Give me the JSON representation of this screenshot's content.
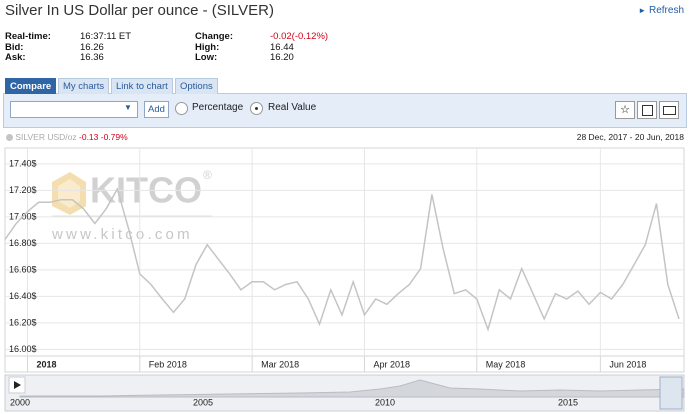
{
  "header": {
    "title": "Silver In US Dollar per ounce - (SILVER)",
    "refresh": "Refresh"
  },
  "quote": {
    "rows": [
      [
        "Real-time:",
        "16:37:11 ET",
        "Change:",
        "-0.02(-0.12%)"
      ],
      [
        "Bid:",
        "16.26",
        "High:",
        "16.44"
      ],
      [
        "Ask:",
        "16.36",
        "Low:",
        "16.20"
      ]
    ]
  },
  "tabs": [
    "Compare",
    "My charts",
    "Link to chart",
    "Options"
  ],
  "toolbar": {
    "add": "Add",
    "percentage": "Percentage",
    "real_value": "Real Value"
  },
  "legend": {
    "change": "-0.13",
    "change_pct": "-0.79%"
  },
  "watermark": {
    "brand": "KITCO",
    "mark": "®",
    "url": "www.kitco.com"
  },
  "chart_data": {
    "type": "line",
    "date_range": "28 Dec, 2017 - 20 Jun, 2018",
    "categories": [
      null,
      null,
      "2018",
      null,
      null,
      null,
      null,
      null,
      null,
      null,
      null,
      null,
      "Feb 2018",
      null,
      null,
      null,
      null,
      null,
      null,
      null,
      null,
      null,
      "Mar 2018",
      null,
      null,
      null,
      null,
      null,
      null,
      null,
      null,
      null,
      "Apr 2018",
      null,
      null,
      null,
      null,
      null,
      null,
      null,
      null,
      null,
      "May 2018",
      null,
      null,
      null,
      null,
      null,
      null,
      null,
      null,
      null,
      null,
      "Jun 2018",
      null,
      null,
      null,
      null,
      null,
      null,
      null
    ],
    "series": [
      {
        "name": "SILVER USD/oz",
        "color": "#c4c4c4",
        "values": [
          16.83,
          16.95,
          17.04,
          17.11,
          17.11,
          17.13,
          17.13,
          17.06,
          16.95,
          17.06,
          17.21,
          16.91,
          16.57,
          16.49,
          16.38,
          16.28,
          16.38,
          16.64,
          16.79,
          16.68,
          16.57,
          16.45,
          16.51,
          16.51,
          16.45,
          16.49,
          16.51,
          16.38,
          16.19,
          16.45,
          16.26,
          16.51,
          16.26,
          16.38,
          16.34,
          16.42,
          16.49,
          16.61,
          17.17,
          16.76,
          16.42,
          16.45,
          16.38,
          16.15,
          16.45,
          16.38,
          16.61,
          16.42,
          16.23,
          16.42,
          16.38,
          16.44,
          16.34,
          16.43,
          16.38,
          16.49,
          16.64,
          16.79,
          17.1,
          16.49,
          16.23
        ]
      }
    ],
    "ylim": [
      15.95,
      17.52
    ],
    "yticks": [
      {
        "value": 16.0,
        "label": "16.00$"
      },
      {
        "value": 16.2,
        "label": "16.20$"
      },
      {
        "value": 16.4,
        "label": "16.40$"
      },
      {
        "value": 16.6,
        "label": "16.60$"
      },
      {
        "value": 16.8,
        "label": "16.80$"
      },
      {
        "value": 17.0,
        "label": "17.00$"
      },
      {
        "value": 17.2,
        "label": "17.20$"
      },
      {
        "value": 17.4,
        "label": "17.40$"
      }
    ],
    "grid": true,
    "navigator": {
      "labels": [
        "2000",
        "2005",
        "2010",
        "2015"
      ]
    }
  }
}
